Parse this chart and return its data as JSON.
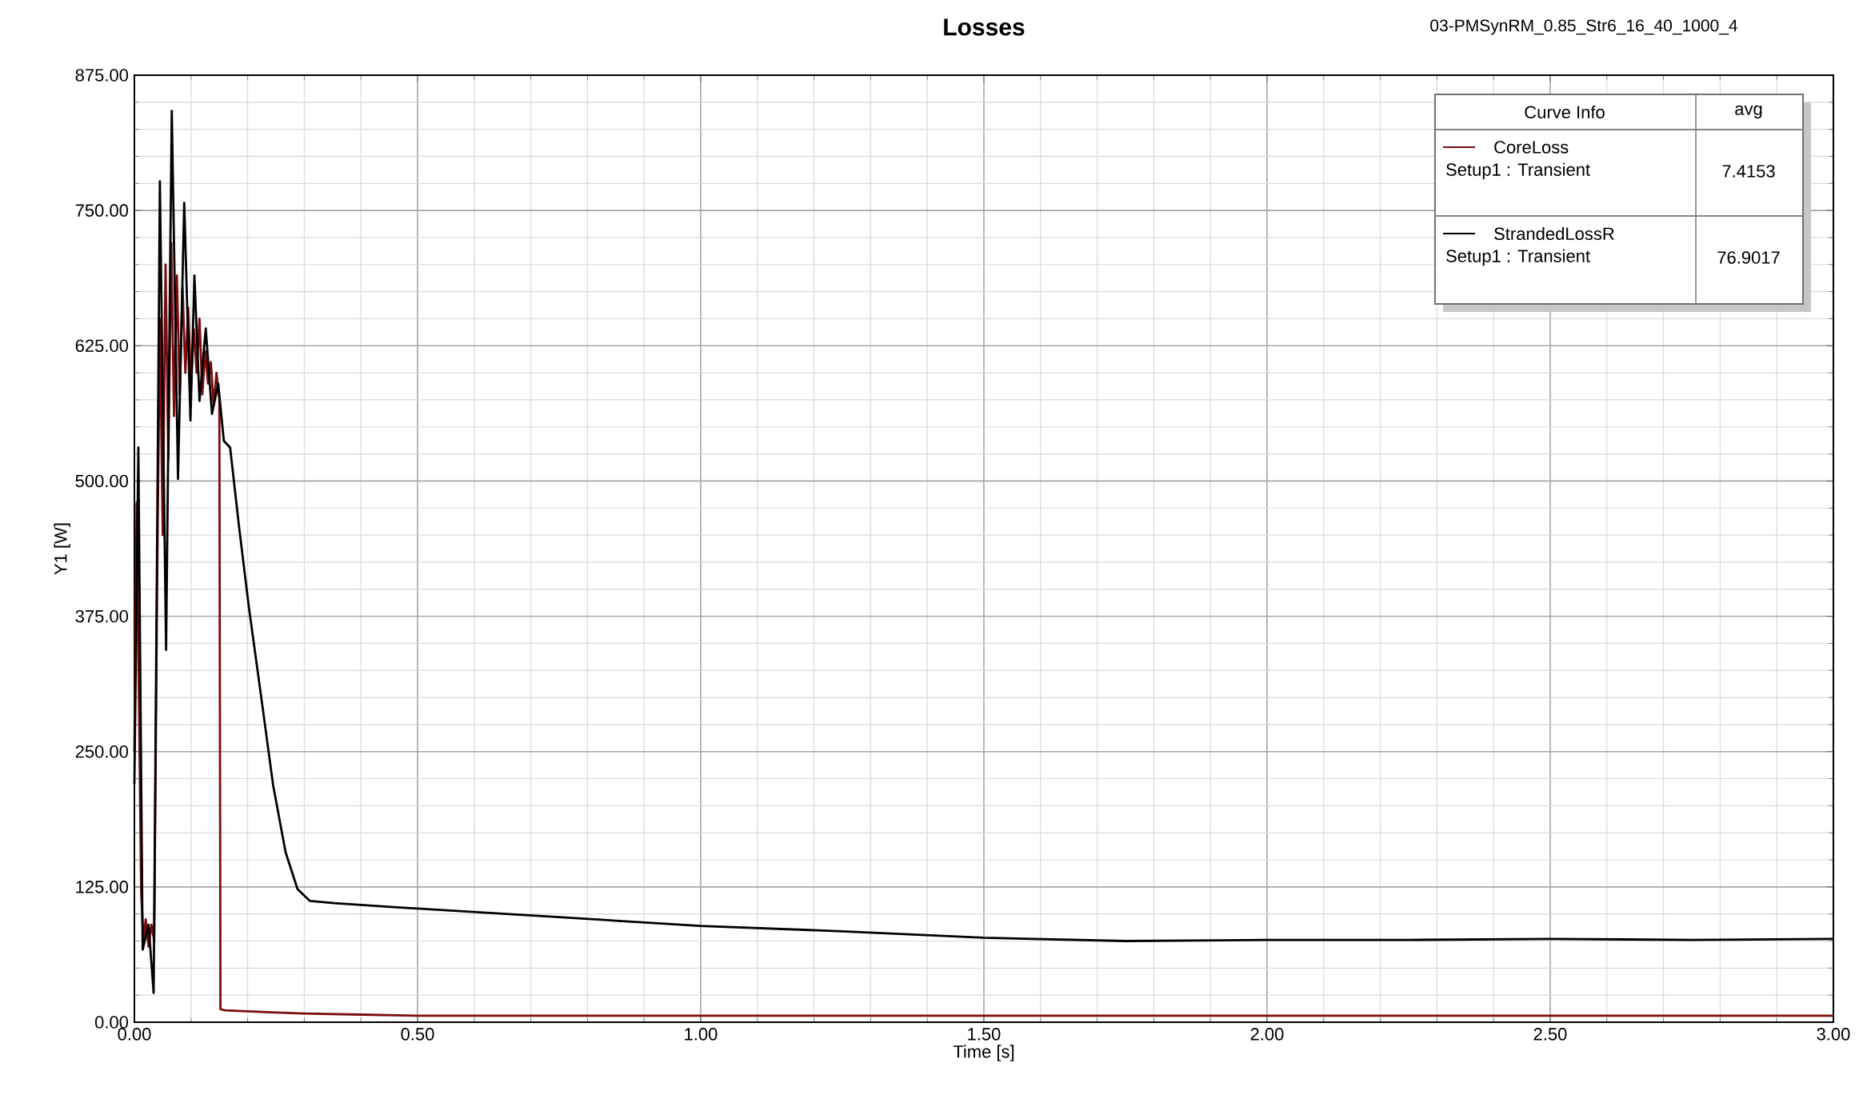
{
  "chart_data": {
    "type": "line",
    "title": "Losses",
    "subtitle": "03-PMSynRM_0.85_Str6_16_40_1000_4",
    "xlabel": "Time [s]",
    "ylabel": "Y1 [W]",
    "legend_title": "Curve Info",
    "annotations": [
      "avg",
      "Setup1 : Transient",
      "7.4153",
      "Setup1 : Transient",
      "76.9017"
    ],
    "xlim": [
      0,
      3
    ],
    "ylim": [
      0,
      875
    ],
    "xticks": [
      {
        "value": 0,
        "label": "0.00"
      },
      {
        "value": 0.5,
        "label": "0.50"
      },
      {
        "value": 1,
        "label": "1.00"
      },
      {
        "value": 1.5,
        "label": "1.50"
      },
      {
        "value": 2,
        "label": "2.00"
      },
      {
        "value": 2.5,
        "label": "2.50"
      },
      {
        "value": 3,
        "label": "3.00"
      }
    ],
    "yticks": [
      {
        "value": 0,
        "label": "0.00"
      },
      {
        "value": 125,
        "label": "125.00"
      },
      {
        "value": 250,
        "label": "250.00"
      },
      {
        "value": 375,
        "label": "375.00"
      },
      {
        "value": 500,
        "label": "500.00"
      },
      {
        "value": 625,
        "label": "625.00"
      },
      {
        "value": 750,
        "label": "750.00"
      },
      {
        "value": 875,
        "label": "875.00"
      }
    ],
    "grid": true,
    "legend": "top right",
    "marker": "none",
    "line_style": "solid",
    "series": [
      {
        "name": "CoreLoss",
        "color": "#7a0c0c",
        "x": [
          0,
          0.004,
          0.008,
          0.012,
          0.016,
          0.02,
          0.025,
          0.03,
          0.035,
          0.04,
          0.045,
          0.05,
          0.055,
          0.06,
          0.065,
          0.07,
          0.075,
          0.08,
          0.085,
          0.09,
          0.095,
          0.1,
          0.105,
          0.11,
          0.115,
          0.12,
          0.125,
          0.13,
          0.135,
          0.14,
          0.145,
          0.15,
          0.152,
          0.16,
          0.2,
          0.25,
          0.3,
          0.4,
          0.5,
          0.75,
          1,
          1.5,
          2,
          2.5,
          3
        ],
        "values": [
          250,
          480,
          300,
          120,
          75,
          95,
          70,
          90,
          75,
          400,
          650,
          450,
          700,
          520,
          720,
          560,
          690,
          580,
          680,
          600,
          660,
          590,
          640,
          600,
          650,
          580,
          620,
          590,
          610,
          570,
          600,
          575,
          12,
          11,
          10,
          9,
          8,
          7,
          6,
          6,
          6,
          6,
          6,
          6,
          6
        ]
      },
      {
        "name": "StrandedLossR",
        "color": "#000000",
        "x": [
          0,
          0.007,
          0.0146,
          0.025,
          0.034,
          0.045,
          0.056,
          0.066,
          0.077,
          0.088,
          0.099,
          0.106,
          0.115,
          0.126,
          0.137,
          0.148,
          0.158,
          0.169,
          0.185,
          0.202,
          0.223,
          0.245,
          0.267,
          0.288,
          0.31,
          0.353,
          0.469,
          0.5,
          0.75,
          1,
          1.25,
          1.5,
          1.75,
          2,
          2.25,
          2.5,
          2.75,
          3
        ],
        "values": [
          220,
          531,
          67,
          90,
          27,
          777,
          344,
          842,
          502,
          757,
          556,
          690,
          574,
          641,
          562,
          590,
          537,
          531,
          457,
          384,
          304,
          219,
          157,
          123,
          112,
          110,
          106,
          105,
          97,
          89,
          84,
          78,
          75,
          76,
          76,
          77,
          76,
          77
        ]
      }
    ]
  }
}
